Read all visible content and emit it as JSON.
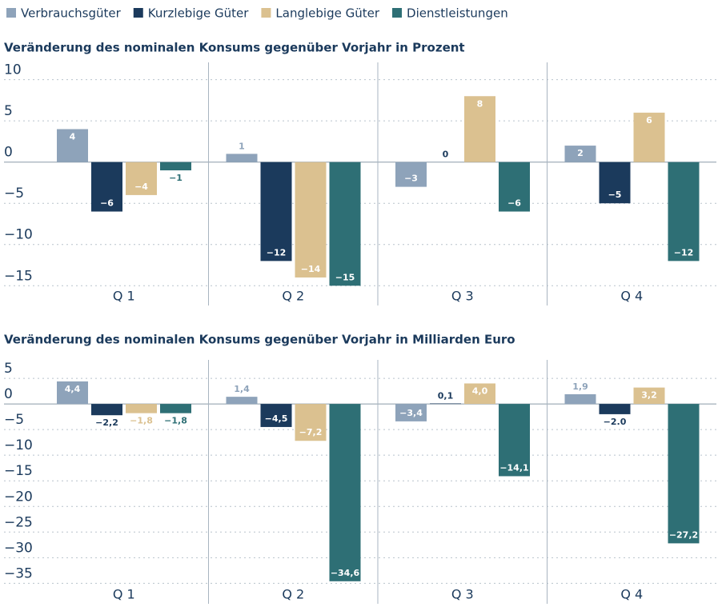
{
  "chart_data": [
    {
      "type": "bar",
      "title": "Veränderung des nominalen Konsums gegenüber Vorjahr in Prozent",
      "categories": [
        "Q 1",
        "Q 2",
        "Q 3",
        "Q 4"
      ],
      "series": [
        {
          "name": "Verbrauchsgüter",
          "color": "#8ea3ba",
          "values": [
            4,
            1,
            -3,
            2
          ],
          "value_labels": [
            "4",
            "1",
            "−3",
            "2"
          ]
        },
        {
          "name": "Kurzlebige Güter",
          "color": "#1b3a5c",
          "values": [
            -6,
            -12,
            0,
            -5
          ],
          "value_labels": [
            "−6",
            "−12",
            "0",
            "−5"
          ]
        },
        {
          "name": "Langlebige Güter",
          "color": "#dbc190",
          "values": [
            -4,
            -14,
            8,
            6
          ],
          "value_labels": [
            "−4",
            "−14",
            "8",
            "6"
          ]
        },
        {
          "name": "Dienstleistungen",
          "color": "#2e6f75",
          "values": [
            -1,
            -15,
            -6,
            -12
          ],
          "value_labels": [
            "−1",
            "−15",
            "−6",
            "−12"
          ]
        }
      ],
      "ylim": [
        -17.4,
        12.1
      ],
      "yticks": [
        {
          "value": -15,
          "label": "−15"
        },
        {
          "value": -10,
          "label": "−10"
        },
        {
          "value": -5,
          "label": "−5"
        },
        0,
        5,
        10
      ],
      "grid": true
    },
    {
      "type": "bar",
      "title": "Veränderung des nominalen Konsums gegenüber Vorjahr in Milliarden Euro",
      "categories": [
        "Q 1",
        "Q 2",
        "Q 3",
        "Q 4"
      ],
      "series": [
        {
          "name": "Verbrauchsgüter",
          "color": "#8ea3ba",
          "values": [
            4.4,
            1.4,
            -3.4,
            1.9
          ],
          "value_labels": [
            "4,4",
            "1,4",
            "−3,4",
            "1,9"
          ]
        },
        {
          "name": "Kurzlebige Güter",
          "color": "#1b3a5c",
          "values": [
            -2.2,
            -4.5,
            0.1,
            -2.0
          ],
          "value_labels": [
            "−2,2",
            "−4,5",
            "0,1",
            "−2.0"
          ]
        },
        {
          "name": "Langlebige Güter",
          "color": "#dbc190",
          "values": [
            -1.8,
            -7.2,
            4.0,
            3.2
          ],
          "value_labels": [
            "−1,8",
            "−7,2",
            "4,0",
            "3,2"
          ]
        },
        {
          "name": "Dienstleistungen",
          "color": "#2e6f75",
          "values": [
            -1.8,
            -34.6,
            -14.1,
            -27.2
          ],
          "value_labels": [
            "−1,8",
            "−34,6",
            "−14,1",
            "−27,2"
          ]
        }
      ],
      "ylim": [
        -39,
        8.6
      ],
      "yticks": [
        {
          "value": -35,
          "label": "−35"
        },
        {
          "value": -30,
          "label": "−30"
        },
        {
          "value": -25,
          "label": "−25"
        },
        {
          "value": -20,
          "label": "−20"
        },
        {
          "value": -15,
          "label": "−15"
        },
        {
          "value": -10,
          "label": "−10"
        },
        {
          "value": -5,
          "label": "−5"
        },
        0,
        5
      ],
      "grid": true
    }
  ]
}
